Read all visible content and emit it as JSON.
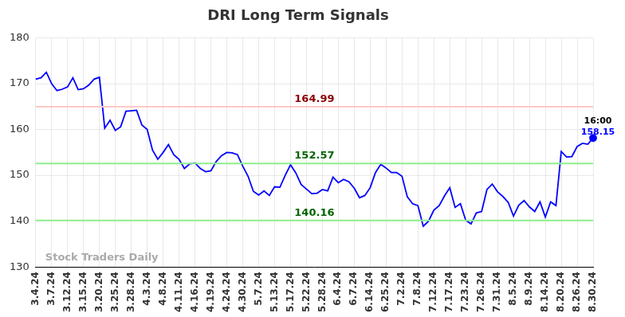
{
  "chart_data": {
    "type": "line",
    "title": "DRI Long Term Signals",
    "categories": [
      "3.4.24",
      null,
      null,
      "3.7.24",
      null,
      null,
      "3.12.24",
      null,
      null,
      "3.15.24",
      null,
      null,
      "3.20.24",
      null,
      null,
      "3.25.24",
      null,
      null,
      "3.28.24",
      null,
      null,
      "4.3.24",
      null,
      null,
      "4.8.24",
      null,
      null,
      "4.11.24",
      null,
      null,
      "4.16.24",
      null,
      null,
      "4.19.24",
      null,
      null,
      "4.24.24",
      null,
      null,
      "4.30.24",
      null,
      null,
      "5.7.24",
      null,
      null,
      "5.13.24",
      null,
      null,
      "5.17.24",
      null,
      null,
      "5.22.24",
      null,
      null,
      "5.28.24",
      null,
      null,
      "6.4.24",
      null,
      null,
      "6.7.24",
      null,
      null,
      "6.14.24",
      null,
      null,
      "6.25.24",
      null,
      null,
      "7.2.24",
      null,
      null,
      "7.8.24",
      null,
      null,
      "7.12.24",
      null,
      null,
      "7.17.24",
      null,
      null,
      "7.23.24",
      null,
      null,
      "7.26.24",
      null,
      null,
      "7.31.24",
      null,
      null,
      "8.5.24",
      null,
      null,
      "8.9.24",
      null,
      null,
      "8.14.24",
      null,
      null,
      "8.20.24",
      null,
      null,
      "8.26.24",
      null,
      null,
      "8.30.24"
    ],
    "values": [
      171,
      171.3,
      172.5,
      170,
      168.5,
      168.8,
      169.3,
      171.3,
      168.7,
      168.9,
      169.7,
      171,
      171.4,
      160.3,
      162,
      159.8,
      160.6,
      164,
      164.1,
      164.2,
      161,
      160,
      155.5,
      153.5,
      155,
      156.7,
      154.5,
      153.5,
      151.5,
      152.5,
      152.7,
      151.5,
      150.8,
      151,
      153,
      154.3,
      155,
      154.9,
      154.5,
      152,
      149.8,
      146.5,
      145.7,
      146.6,
      145.6,
      147.5,
      147.4,
      150,
      152.3,
      150.5,
      148,
      147,
      146,
      146.1,
      146.9,
      146.6,
      149.6,
      148.4,
      149.1,
      148.6,
      147.2,
      145.1,
      145.6,
      147.3,
      150.6,
      152.4,
      151.6,
      150.6,
      150.6,
      149.8,
      145.3,
      143.8,
      143.4,
      138.9,
      140,
      142.4,
      143.4,
      145.5,
      147.3,
      143,
      143.8,
      140.2,
      139.4,
      141.8,
      142.1,
      146.9,
      148.1,
      146.4,
      145.4,
      144.1,
      141.1,
      143.5,
      144.5,
      143.1,
      142.1,
      144.2,
      140.9,
      144.2,
      143.4,
      155.2,
      154,
      154.1,
      156.3,
      157,
      156.8,
      158.15
    ],
    "color": "#0000ff",
    "ylim": [
      130,
      180
    ],
    "yticks": [
      130,
      140,
      150,
      160,
      170,
      180
    ],
    "grid": true,
    "levels": [
      {
        "value": 164.99,
        "label": "164.99",
        "color": "#ffc8c8",
        "label_color": "#8b0000"
      },
      {
        "value": 152.57,
        "label": "152.57",
        "color": "#90ee90",
        "label_color": "#006400"
      },
      {
        "value": 140.16,
        "label": "140.16",
        "color": "#90ee90",
        "label_color": "#006400"
      }
    ],
    "last_point": {
      "time_label": "16:00",
      "value_label": "158.15"
    },
    "watermark": "Stock Traders Daily"
  }
}
